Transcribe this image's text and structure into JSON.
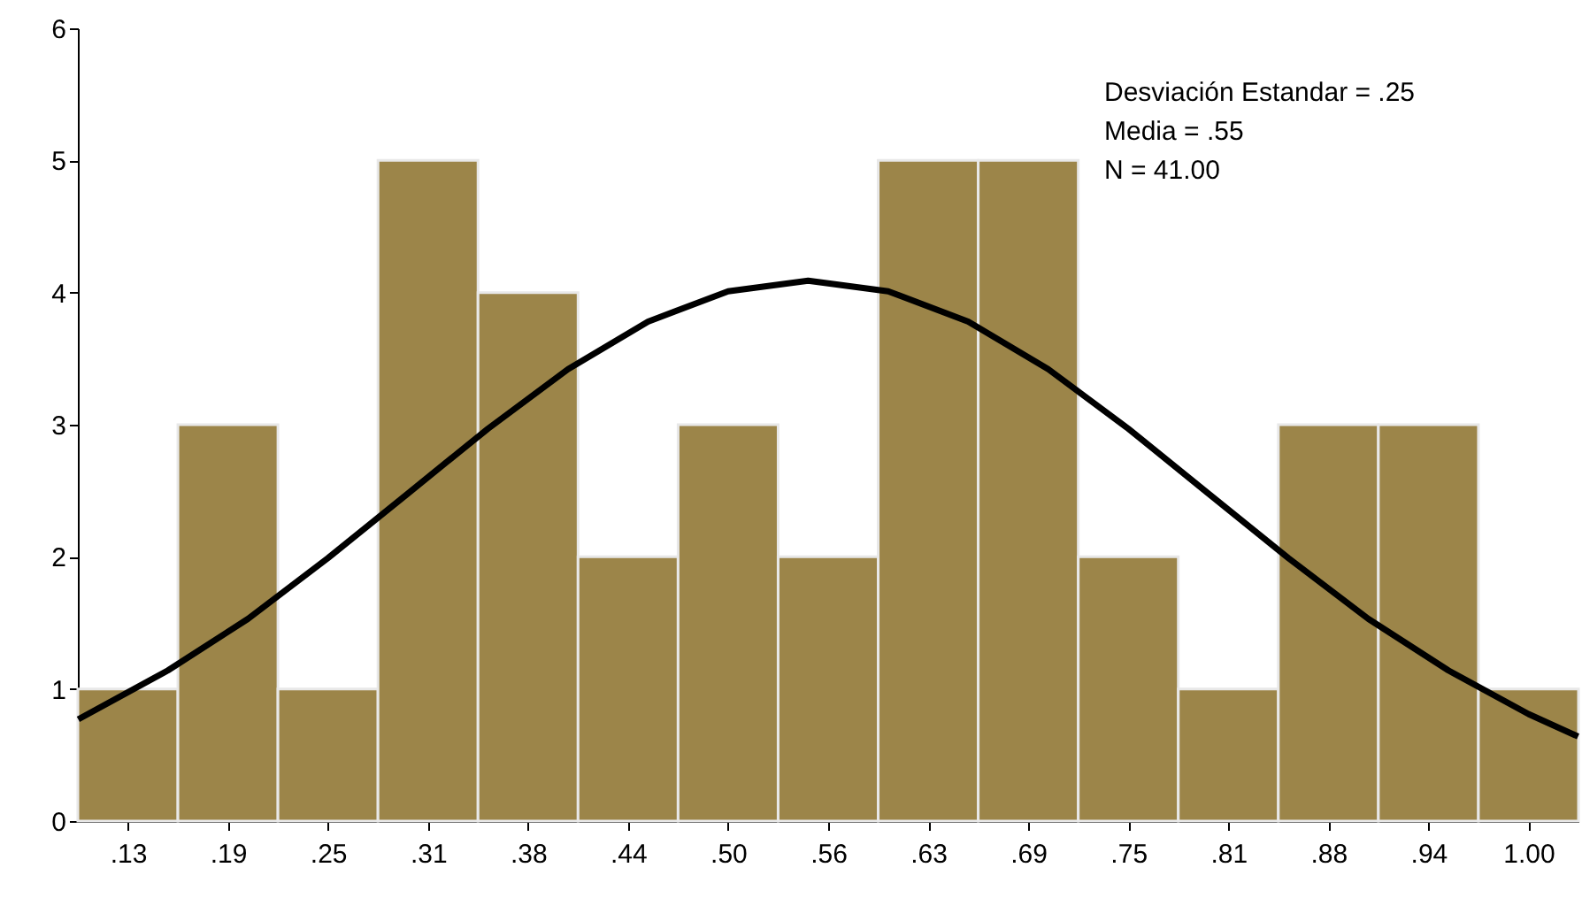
{
  "chart_data": {
    "type": "histogram",
    "bins": [
      0.09375,
      0.15625,
      0.21875,
      0.28125,
      0.34375,
      0.40625,
      0.46875,
      0.53125,
      0.59375,
      0.65625,
      0.71875,
      0.78125,
      0.84375,
      0.90625,
      0.96875,
      1.03125
    ],
    "values": [
      1,
      3,
      1,
      5,
      4,
      2,
      3,
      2,
      5,
      5,
      2,
      1,
      3,
      3,
      1
    ],
    "color": "#9c8549",
    "series": [
      {
        "type": "line",
        "color": "#000000",
        "x": [
          0.094,
          0.15,
          0.2,
          0.25,
          0.3,
          0.35,
          0.4,
          0.45,
          0.5,
          0.55,
          0.6,
          0.65,
          0.7,
          0.75,
          0.8,
          0.85,
          0.9,
          0.95,
          1.0,
          1.031
        ],
        "values": [
          0.77,
          1.14,
          1.53,
          1.99,
          2.48,
          2.97,
          3.42,
          3.78,
          4.01,
          4.09,
          4.01,
          3.78,
          3.42,
          2.97,
          2.48,
          1.99,
          1.53,
          1.14,
          0.81,
          0.64
        ]
      }
    ],
    "xlim": [
      0.09375,
      1.03125
    ],
    "xticks": [
      {
        "value": 0.125,
        "label": ".13"
      },
      {
        "value": 0.1875,
        "label": ".19"
      },
      {
        "value": 0.25,
        "label": ".25"
      },
      {
        "value": 0.3125,
        "label": ".31"
      },
      {
        "value": 0.375,
        "label": ".38"
      },
      {
        "value": 0.4375,
        "label": ".44"
      },
      {
        "value": 0.5,
        "label": ".50"
      },
      {
        "value": 0.5625,
        "label": ".56"
      },
      {
        "value": 0.625,
        "label": ".63"
      },
      {
        "value": 0.6875,
        "label": ".69"
      },
      {
        "value": 0.75,
        "label": ".75"
      },
      {
        "value": 0.8125,
        "label": ".81"
      },
      {
        "value": 0.875,
        "label": ".88"
      },
      {
        "value": 0.9375,
        "label": ".94"
      },
      {
        "value": 1.0,
        "label": "1.00"
      }
    ],
    "ylim": [
      0,
      6
    ],
    "yticks": [
      0,
      1,
      2,
      3,
      4,
      5,
      6
    ],
    "grid": false,
    "annotations": [
      "Desviación Estandar = .25",
      "Media = .55",
      "N = 41.00"
    ]
  }
}
